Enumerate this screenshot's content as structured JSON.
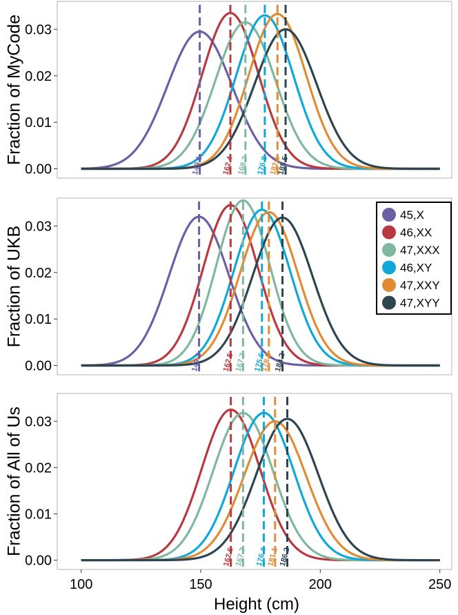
{
  "figure": {
    "xlabel": "Height (cm)",
    "x_ticks": [
      100,
      150,
      200,
      250
    ],
    "xlim": [
      90,
      255
    ],
    "linestyle_colors": {
      "45,X": "#6b5fa5",
      "46,XX": "#b8393f",
      "47,XXX": "#7fb89f",
      "46,XY": "#10a8d8",
      "47,XXY": "#e18c35",
      "47,XYY": "#2e444f"
    }
  },
  "legend": {
    "placement": "top-right of middle panel",
    "entries": [
      "45,X",
      "46,XX",
      "47,XXX",
      "46,XY",
      "47,XXY",
      "47,XYY"
    ]
  },
  "chart_data": [
    {
      "type": "line",
      "ylabel": "Fraction of MyCode",
      "ylim": [
        -0.002,
        0.036
      ],
      "y_ticks": [
        "0.00",
        "0.01",
        "0.02",
        "0.03"
      ],
      "series": [
        {
          "name": "45,X",
          "mean": 149.6,
          "peak": 0.0295,
          "sd": 13.5,
          "mean_label": "149.6"
        },
        {
          "name": "46,XX",
          "mean": 162.4,
          "peak": 0.0335,
          "sd": 11.8,
          "mean_label": "162.4"
        },
        {
          "name": "47,XXX",
          "mean": 168.7,
          "peak": 0.0315,
          "sd": 12.5,
          "mean_label": "168.7"
        },
        {
          "name": "46,XY",
          "mean": 176.8,
          "peak": 0.033,
          "sd": 12.0,
          "mean_label": "176.8"
        },
        {
          "name": "47,XXY",
          "mean": 182.1,
          "peak": 0.0333,
          "sd": 12.0,
          "mean_label": "182.1"
        },
        {
          "name": "47,XYY",
          "mean": 185.5,
          "peak": 0.03,
          "sd": 13.0,
          "mean_label": "185.5"
        }
      ]
    },
    {
      "type": "line",
      "ylabel": "Fraction of UKB",
      "ylim": [
        -0.002,
        0.036
      ],
      "y_ticks": [
        "0.00",
        "0.01",
        "0.02",
        "0.03"
      ],
      "series": [
        {
          "name": "45,X",
          "mean": 149.3,
          "peak": 0.032,
          "sd": 12.5,
          "mean_label": "149.3"
        },
        {
          "name": "46,XX",
          "mean": 162.5,
          "peak": 0.0345,
          "sd": 11.5,
          "mean_label": "162.5"
        },
        {
          "name": "47,XXX",
          "mean": 167.7,
          "peak": 0.0355,
          "sd": 11.2,
          "mean_label": "167.7"
        },
        {
          "name": "46,XY",
          "mean": 175.6,
          "peak": 0.0335,
          "sd": 11.8,
          "mean_label": "175.6"
        },
        {
          "name": "47,XXY",
          "mean": 178.5,
          "peak": 0.033,
          "sd": 12.0,
          "mean_label": "178.5"
        },
        {
          "name": "47,XYY",
          "mean": 184.2,
          "peak": 0.0318,
          "sd": 12.5,
          "mean_label": "184.2"
        }
      ]
    },
    {
      "type": "line",
      "ylabel": "Fraction of All of Us",
      "ylim": [
        -0.002,
        0.036
      ],
      "y_ticks": [
        "0.00",
        "0.01",
        "0.02",
        "0.03"
      ],
      "series": [
        {
          "name": "46,XX",
          "mean": 162.6,
          "peak": 0.0325,
          "sd": 12.2,
          "mean_label": "162.6"
        },
        {
          "name": "47,XXX",
          "mean": 167.7,
          "peak": 0.0318,
          "sd": 12.5,
          "mean_label": "167.7"
        },
        {
          "name": "46,XY",
          "mean": 176.4,
          "peak": 0.0318,
          "sd": 12.5,
          "mean_label": "176.4"
        },
        {
          "name": "47,XXY",
          "mean": 181.1,
          "peak": 0.03,
          "sd": 13.0,
          "mean_label": "181.1"
        },
        {
          "name": "47,XYY",
          "mean": 186.2,
          "peak": 0.0305,
          "sd": 13.0,
          "mean_label": "186.2"
        }
      ]
    }
  ]
}
